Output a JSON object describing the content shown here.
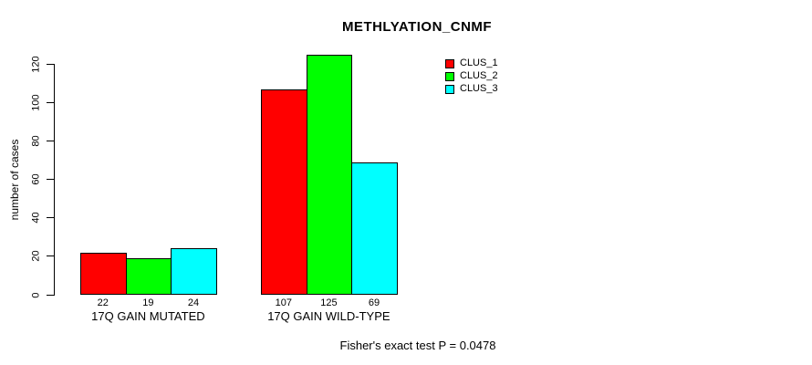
{
  "chart_data": {
    "type": "bar",
    "title": "METHLYATION_CNMF",
    "ylabel": "number of cases",
    "xlabel": "",
    "categories": [
      "17Q GAIN MUTATED",
      "17Q GAIN WILD-TYPE"
    ],
    "series": [
      {
        "name": "CLUS_1",
        "color": "#ff0000",
        "values": [
          22,
          107
        ]
      },
      {
        "name": "CLUS_2",
        "color": "#00ff00",
        "values": [
          19,
          125
        ]
      },
      {
        "name": "CLUS_3",
        "color": "#00ffff",
        "values": [
          24,
          69
        ]
      }
    ],
    "yticks": [
      0,
      20,
      40,
      60,
      80,
      100,
      120
    ],
    "ylim": [
      0,
      125
    ],
    "grid": false,
    "bar_value_labels_shown": true,
    "legend_position": "top-right",
    "legend_entries": [
      "CLUS_1",
      "CLUS_2",
      "CLUS_3"
    ],
    "footnote": "Fisher's exact test P = 0.0478",
    "background_color": "#ffffff",
    "bar_border_color": "#000000",
    "text_color": "#000000"
  }
}
